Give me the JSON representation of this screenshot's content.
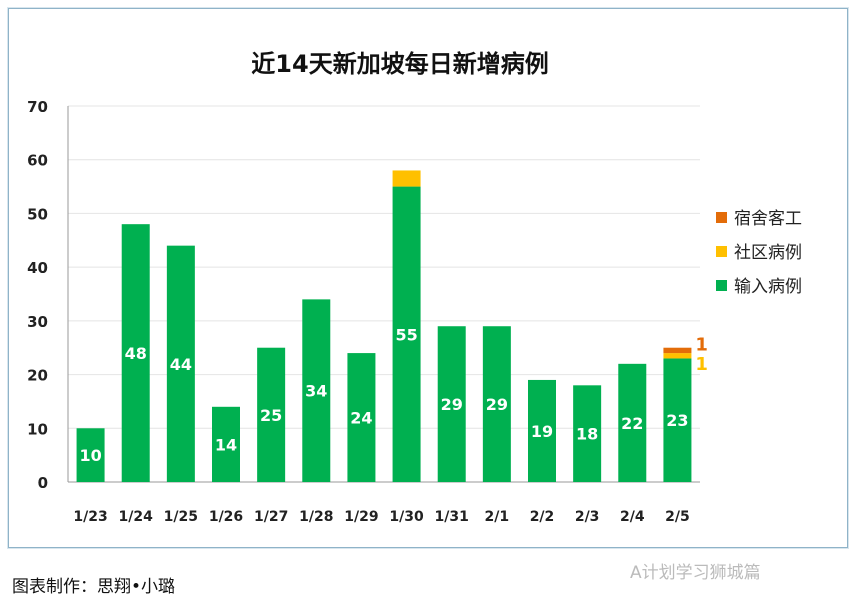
{
  "chart_data": {
    "type": "bar",
    "stacked": true,
    "title": "近14天新加坡每日新增病例",
    "categories": [
      "1/23",
      "1/24",
      "1/25",
      "1/26",
      "1/27",
      "1/28",
      "1/29",
      "1/30",
      "1/31",
      "2/1",
      "2/2",
      "2/3",
      "2/4",
      "2/5"
    ],
    "series": [
      {
        "name": "输入病例",
        "color": "#00b050",
        "values": [
          10,
          48,
          44,
          14,
          25,
          34,
          24,
          55,
          29,
          29,
          19,
          18,
          22,
          23
        ]
      },
      {
        "name": "社区病例",
        "color": "#ffc000",
        "values": [
          0,
          0,
          0,
          0,
          0,
          0,
          0,
          3,
          0,
          0,
          0,
          0,
          0,
          1
        ]
      },
      {
        "name": "宿舍客工",
        "color": "#e36c09",
        "values": [
          0,
          0,
          0,
          0,
          0,
          0,
          0,
          0,
          0,
          0,
          0,
          0,
          0,
          1
        ]
      }
    ],
    "ylim": [
      0,
      70
    ],
    "yticks": [
      0,
      10,
      20,
      30,
      40,
      50,
      60,
      70
    ],
    "grid": true,
    "legend": "right"
  },
  "footer": {
    "credit": "图表制作：思翔•小璐",
    "watermark": "A计划学习狮城篇"
  }
}
